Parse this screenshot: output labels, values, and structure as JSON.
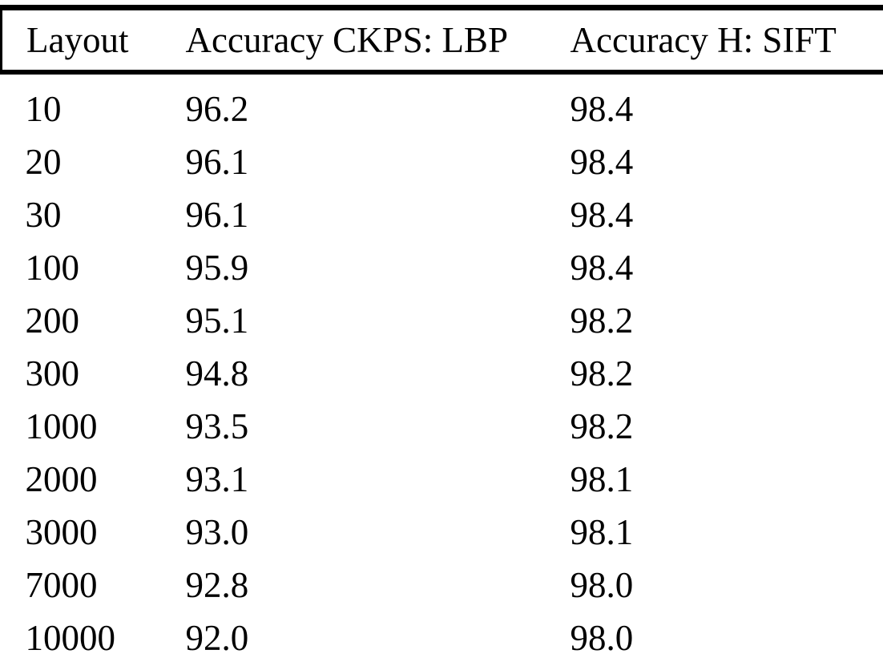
{
  "figure": {
    "kind": "scanned paper table",
    "background_color": "#ffffff",
    "text_color": "#000000",
    "rule_color": "#000000"
  },
  "chart_data": {
    "type": "table",
    "title": "",
    "columns": [
      "Layout",
      "Accuracy CKPS: LBP",
      "Accuracy H: SIFT"
    ],
    "rows": [
      [
        "10",
        "96.2",
        "98.4"
      ],
      [
        "20",
        "96.1",
        "98.4"
      ],
      [
        "30",
        "96.1",
        "98.4"
      ],
      [
        "100",
        "95.9",
        "98.4"
      ],
      [
        "200",
        "95.1",
        "98.2"
      ],
      [
        "300",
        "94.8",
        "98.2"
      ],
      [
        "1000",
        "93.5",
        "98.2"
      ],
      [
        "2000",
        "93.1",
        "98.1"
      ],
      [
        "3000",
        "93.0",
        "98.1"
      ],
      [
        "7000",
        "92.8",
        "98.0"
      ],
      [
        "10000",
        "92.0",
        "98.0"
      ]
    ],
    "series": [
      {
        "name": "Accuracy CKPS: LBP",
        "x": [
          10,
          20,
          30,
          100,
          200,
          300,
          1000,
          2000,
          3000,
          7000,
          10000
        ],
        "values": [
          96.2,
          96.1,
          96.1,
          95.9,
          95.1,
          94.8,
          93.5,
          93.1,
          93.0,
          92.8,
          92.0
        ]
      },
      {
        "name": "Accuracy H: SIFT",
        "x": [
          10,
          20,
          30,
          100,
          200,
          300,
          1000,
          2000,
          3000,
          7000,
          10000
        ],
        "values": [
          98.4,
          98.4,
          98.4,
          98.4,
          98.2,
          98.2,
          98.2,
          98.1,
          98.1,
          98.0,
          98.0
        ]
      }
    ],
    "layout_hints": {
      "grid": "off",
      "rules": [
        "top",
        "below-header",
        "bottom"
      ],
      "header_edge_stubs": [
        "left",
        "right"
      ],
      "column_alignment": [
        "left",
        "left",
        "left"
      ]
    }
  }
}
